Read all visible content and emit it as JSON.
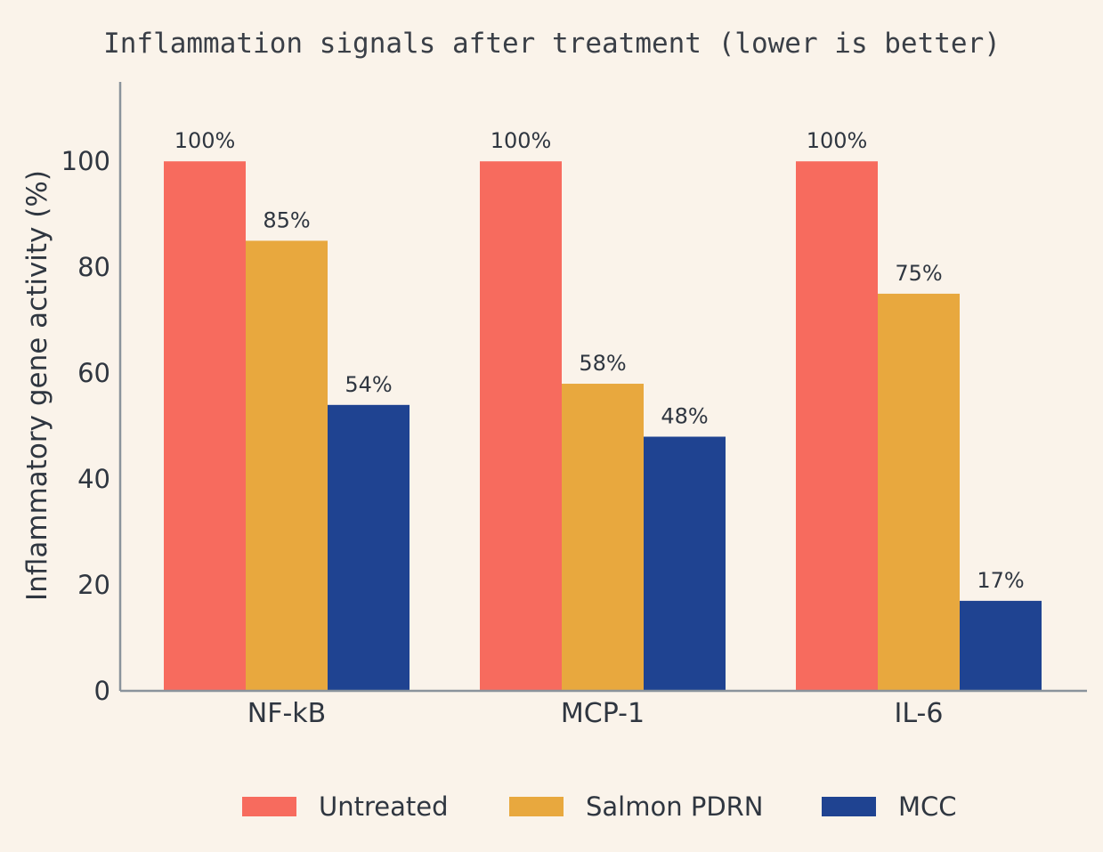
{
  "chart_data": {
    "type": "bar",
    "title": "Inflammation signals after treatment (lower is better)",
    "ylabel": "Inflammatory gene activity (%)",
    "xlabel": "",
    "ylim": [
      0,
      115
    ],
    "yticks": [
      0,
      20,
      40,
      60,
      80,
      100
    ],
    "categories": [
      "NF-kB",
      "MCP-1",
      "IL-6"
    ],
    "series": [
      {
        "name": "Untreated",
        "color": "#f76b5e",
        "values": [
          100,
          100,
          100
        ],
        "labels": [
          "100%",
          "100%",
          "100%"
        ]
      },
      {
        "name": "Salmon PDRN",
        "color": "#e8a83e",
        "values": [
          85,
          58,
          75
        ],
        "labels": [
          "85%",
          "58%",
          "75%"
        ]
      },
      {
        "name": "MCC",
        "color": "#1f4391",
        "values": [
          54,
          48,
          17
        ],
        "labels": [
          "54%",
          "48%",
          "17%"
        ]
      }
    ],
    "grid": false,
    "legend": "bottom"
  }
}
